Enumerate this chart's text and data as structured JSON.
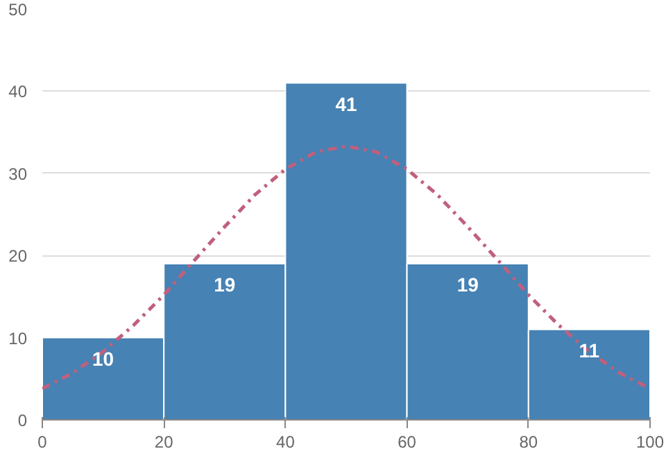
{
  "chart_data": {
    "type": "histogram",
    "bins": [
      0,
      20,
      40,
      60,
      80,
      100
    ],
    "xlim": [
      0,
      100
    ],
    "xticks": [
      0,
      20,
      40,
      60,
      80,
      100
    ],
    "ylim": [
      0,
      50
    ],
    "yticks": [
      0,
      10,
      20,
      30,
      40,
      50
    ],
    "grid": "y",
    "series": [
      {
        "color": "#4682b4",
        "values": [
          10,
          19,
          41,
          19,
          11
        ],
        "value_labels": [
          "10",
          "19",
          "41",
          "19",
          "11"
        ]
      },
      {
        "type": "line",
        "color": "#c0607e",
        "line_style": "dashdot",
        "x": [
          0,
          5,
          10,
          15,
          20,
          25,
          30,
          35,
          40,
          45,
          50,
          55,
          60,
          65,
          70,
          75,
          80,
          85,
          90,
          95,
          100
        ],
        "values": [
          3.8,
          5.7,
          8.3,
          11.5,
          15.2,
          19.4,
          23.5,
          27.4,
          30.5,
          32.6,
          33.3,
          32.6,
          30.5,
          27.4,
          23.5,
          19.4,
          15.2,
          11.5,
          8.3,
          5.7,
          3.8
        ]
      }
    ]
  }
}
